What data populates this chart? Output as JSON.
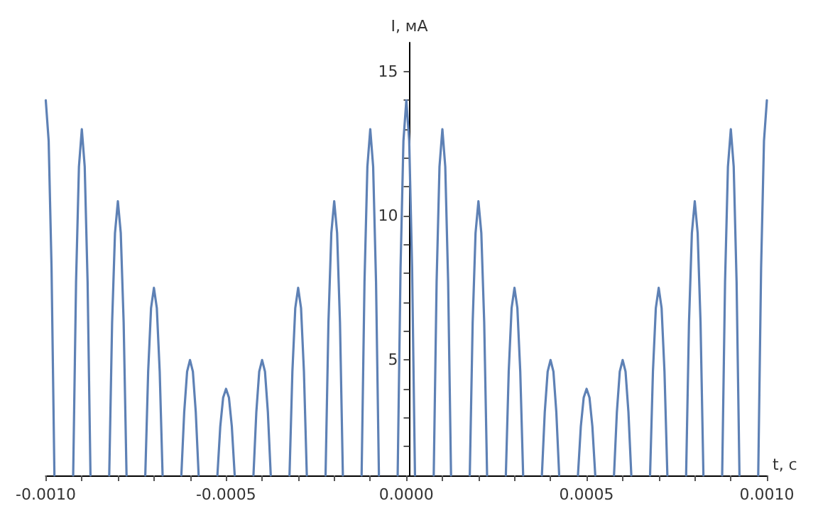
{
  "chart_data": {
    "type": "line",
    "xlabel": "t, с",
    "ylabel": "I, мА",
    "xlim": [
      -0.001,
      0.001
    ],
    "xticks": [
      {
        "value": -0.001,
        "label": "-0.0010"
      },
      {
        "value": -0.0009,
        "label": null
      },
      {
        "value": -0.0008,
        "label": null
      },
      {
        "value": -0.0007,
        "label": null
      },
      {
        "value": -0.0006,
        "label": null
      },
      {
        "value": -0.0005,
        "label": "-0.0005"
      },
      {
        "value": -0.0004,
        "label": null
      },
      {
        "value": -0.0003,
        "label": null
      },
      {
        "value": -0.0002,
        "label": null
      },
      {
        "value": -0.0001,
        "label": null
      },
      {
        "value": 0,
        "label": "0.0000"
      },
      {
        "value": 0.0001,
        "label": null
      },
      {
        "value": 0.0002,
        "label": null
      },
      {
        "value": 0.0003,
        "label": null
      },
      {
        "value": 0.0004,
        "label": null
      },
      {
        "value": 0.0005,
        "label": "0.0005"
      },
      {
        "value": 0.0006,
        "label": null
      },
      {
        "value": 0.0007,
        "label": null
      },
      {
        "value": 0.0008,
        "label": null
      },
      {
        "value": 0.0009,
        "label": null
      },
      {
        "value": 0.001,
        "label": "0.0010"
      }
    ],
    "ylim": [
      1,
      16
    ],
    "yticks": [
      {
        "value": 2,
        "label": null
      },
      {
        "value": 3,
        "label": null
      },
      {
        "value": 4,
        "label": null
      },
      5,
      {
        "value": 6,
        "label": null
      },
      {
        "value": 7,
        "label": null
      },
      {
        "value": 8,
        "label": null
      },
      {
        "value": 9,
        "label": null
      },
      10,
      {
        "value": 11,
        "label": null
      },
      {
        "value": 12,
        "label": null
      },
      {
        "value": 13,
        "label": null
      },
      {
        "value": 14,
        "label": null
      },
      15
    ],
    "grid": false,
    "marker": "none",
    "line_style": "solid",
    "series": [
      {
        "color": "#5e81b5",
        "x": [
          -0.001,
          -0.000992,
          -0.000984,
          -0.000976,
          -0.00095,
          -0.000924,
          -0.000916,
          -0.000908,
          -0.0009,
          -0.000892,
          -0.000884,
          -0.000876,
          -0.00085,
          -0.000824,
          -0.000816,
          -0.000808,
          -0.0008,
          -0.000792,
          -0.000784,
          -0.000776,
          -0.00075,
          -0.000724,
          -0.000716,
          -0.000708,
          -0.0007,
          -0.000692,
          -0.000684,
          -0.000676,
          -0.00065,
          -0.000624,
          -0.000616,
          -0.000608,
          -0.0006,
          -0.000592,
          -0.000584,
          -0.000576,
          -0.00055,
          -0.000524,
          -0.000516,
          -0.000508,
          -0.0005,
          -0.000492,
          -0.000484,
          -0.000476,
          -0.00045,
          -0.000424,
          -0.000416,
          -0.000408,
          -0.0004,
          -0.000392,
          -0.000384,
          -0.000376,
          -0.00035,
          -0.000324,
          -0.000316,
          -0.000308,
          -0.0003,
          -0.000292,
          -0.000284,
          -0.000276,
          -0.00025,
          -0.000224,
          -0.000216,
          -0.000208,
          -0.0002,
          -0.000192,
          -0.000184,
          -0.000176,
          -0.00015,
          -0.000124,
          -0.000116,
          -0.000108,
          -0.0001,
          -9.2e-05,
          -8.4e-05,
          -7.6e-05,
          -5e-05,
          -2.4e-05,
          -1.6e-05,
          -8e-06,
          0,
          8e-06,
          1.6e-05,
          2.4e-05,
          5e-05,
          7.6e-05,
          8.4e-05,
          9.2e-05,
          0.0001,
          0.000108,
          0.000116,
          0.000124,
          0.00015,
          0.000176,
          0.000184,
          0.000192,
          0.0002,
          0.000208,
          0.000216,
          0.000224,
          0.00025,
          0.000276,
          0.000284,
          0.000292,
          0.0003,
          0.000308,
          0.000316,
          0.000324,
          0.00035,
          0.000376,
          0.000384,
          0.000392,
          0.0004,
          0.000408,
          0.000416,
          0.000424,
          0.00045,
          0.000476,
          0.000484,
          0.000492,
          0.0005,
          0.000508,
          0.000516,
          0.000524,
          0.00055,
          0.000576,
          0.000584,
          0.000592,
          0.0006,
          0.000608,
          0.000616,
          0.000624,
          0.00065,
          0.000676,
          0.000684,
          0.000692,
          0.0007,
          0.000708,
          0.000716,
          0.000724,
          0.00075,
          0.000776,
          0.000784,
          0.000792,
          0.0008,
          0.000808,
          0.000816,
          0.000824,
          0.00085,
          0.000876,
          0.000884,
          0.000892,
          0.0009,
          0.000908,
          0.000916,
          0.000924,
          0.00095,
          0.000976,
          0.000984,
          0.000992,
          0.001
        ],
        "values": [
          14,
          12.6,
          8.2,
          1,
          null,
          1,
          7.7,
          11.7,
          13,
          11.7,
          7.7,
          1,
          null,
          1,
          6.3,
          9.4,
          10.5,
          9.4,
          6.3,
          1,
          null,
          1,
          4.6,
          6.8,
          7.5,
          6.8,
          4.6,
          1,
          null,
          1,
          3.2,
          4.6,
          5,
          4.6,
          3.2,
          1,
          null,
          1,
          2.7,
          3.7,
          4,
          3.7,
          2.7,
          1,
          null,
          1,
          3.2,
          4.6,
          5,
          4.6,
          3.2,
          1,
          null,
          1,
          4.6,
          6.8,
          7.5,
          6.8,
          4.6,
          1,
          null,
          1,
          6.3,
          9.4,
          10.5,
          9.4,
          6.3,
          1,
          null,
          1,
          7.7,
          11.7,
          13,
          11.7,
          7.7,
          1,
          null,
          1,
          8.2,
          12.6,
          14,
          12.6,
          8.2,
          1,
          null,
          1,
          7.7,
          11.7,
          13,
          11.7,
          7.7,
          1,
          null,
          1,
          6.3,
          9.4,
          10.5,
          9.4,
          6.3,
          1,
          null,
          1,
          4.6,
          6.8,
          7.5,
          6.8,
          4.6,
          1,
          null,
          1,
          3.2,
          4.6,
          5,
          4.6,
          3.2,
          1,
          null,
          1,
          2.7,
          3.7,
          4,
          3.7,
          2.7,
          1,
          null,
          1,
          3.2,
          4.6,
          5,
          4.6,
          3.2,
          1,
          null,
          1,
          4.6,
          6.8,
          7.5,
          6.8,
          4.6,
          1,
          null,
          1,
          6.3,
          9.4,
          10.5,
          9.4,
          6.3,
          1,
          null,
          1,
          7.7,
          11.7,
          13,
          11.7,
          7.7,
          1,
          null,
          1,
          8.2,
          12.6,
          14
        ]
      }
    ]
  }
}
